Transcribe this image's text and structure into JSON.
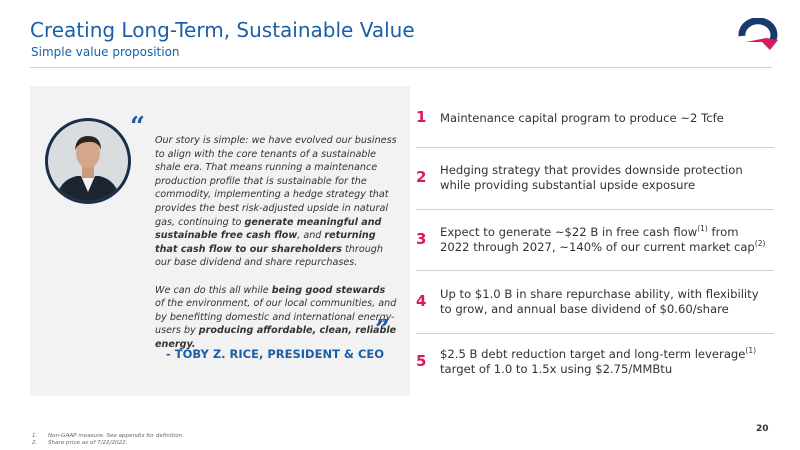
{
  "header": {
    "title": "Creating Long-Term, Sustainable Value",
    "subtitle": "Simple value proposition"
  },
  "quote": {
    "open_mark": "“",
    "close_mark": "”",
    "paragraphs": [
      [
        {
          "text": "Our story is simple: we have evolved our business to align with the core tenants of a sustainable shale era. That means running a maintenance production profile that is sustainable for the commodity, implementing a hedge strategy that provides the best risk-adjusted upside in natural gas, continuing to "
        },
        {
          "text": "generate meaningful and sustainable free cash flow",
          "bold": true
        },
        {
          "text": ", and "
        },
        {
          "text": "returning that cash flow to our shareholders",
          "bold": true
        },
        {
          "text": " through our base dividend and share repurchases."
        }
      ],
      [
        {
          "text": "We can do this all while "
        },
        {
          "text": "being good stewards",
          "bold": true
        },
        {
          "text": " of the environment, of our local communities, and by benefitting domestic and international energy-users by "
        },
        {
          "text": "producing affordable, clean, reliable energy.",
          "bold": true
        }
      ]
    ],
    "attribution": "- TOBY Z. RICE, PRESIDENT & CEO"
  },
  "items": [
    {
      "number": 1,
      "segments": [
        {
          "text": "Maintenance capital program to produce ~2 Tcfe"
        }
      ]
    },
    {
      "number": 2,
      "segments": [
        {
          "text": "Hedging strategy that provides downside protection while providing substantial upside exposure"
        }
      ]
    },
    {
      "number": 3,
      "segments": [
        {
          "text": "Expect to generate ~$22 B in free cash flow"
        },
        {
          "text": "(1)",
          "sup": true
        },
        {
          "text": " from 2022 through 2027, ~140% of our current market cap"
        },
        {
          "text": "(2)",
          "sup": true
        }
      ]
    },
    {
      "number": 4,
      "segments": [
        {
          "text": "Up to $1.0 B in share repurchase ability, with flexibility to grow, and annual base dividend of $0.60/share"
        }
      ]
    },
    {
      "number": 5,
      "segments": [
        {
          "text": "$2.5 B debt reduction target and long-term leverage"
        },
        {
          "text": "(1)",
          "sup": true
        },
        {
          "text": " target of 1.0 to 1.5x using $2.75/MMBtu"
        }
      ]
    }
  ],
  "footnotes": [
    {
      "marker": "1.",
      "text": "Non-GAAP measure. See appendix for definition."
    },
    {
      "marker": "2.",
      "text": "Share price as of 7/22/2022."
    }
  ],
  "page_number": 20
}
